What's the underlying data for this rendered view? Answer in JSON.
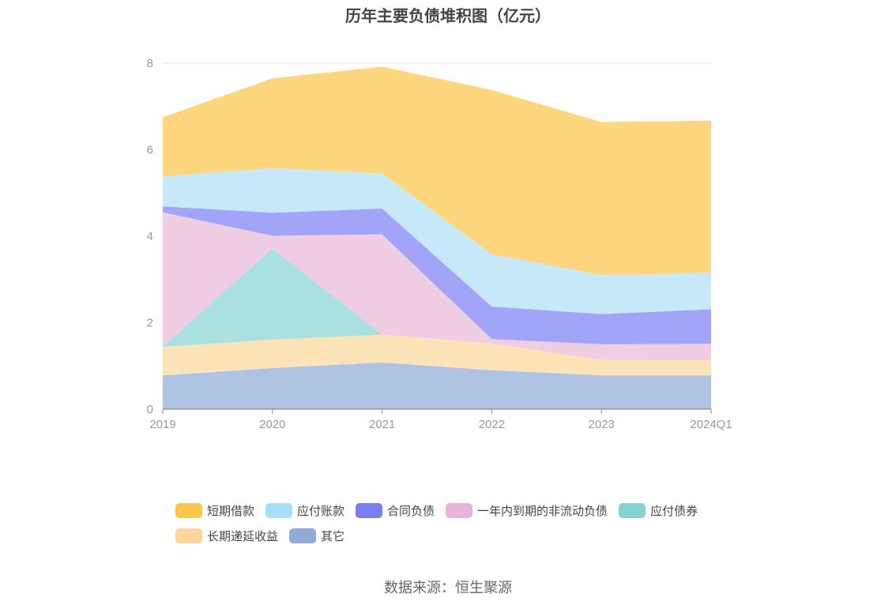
{
  "title": "历年主要负债堆积图（亿元）",
  "source": "数据来源：恒生聚源",
  "chart_data": {
    "type": "area",
    "stacked": true,
    "title": "历年主要负债堆积图（亿元）",
    "categories": [
      "2019",
      "2020",
      "2021",
      "2022",
      "2023",
      "2024Q1"
    ],
    "ylim": [
      0,
      8
    ],
    "yticks": [
      "0",
      "2",
      "4",
      "6",
      "8"
    ],
    "grid": true,
    "legend_position": "bottom",
    "series": [
      {
        "name": "其它",
        "color": "#aec3e2",
        "values": [
          0.78,
          0.95,
          1.08,
          0.9,
          0.78,
          0.78
        ]
      },
      {
        "name": "长期递延收益",
        "color": "#fde3b8",
        "values": [
          0.66,
          0.66,
          0.64,
          0.62,
          0.36,
          0.35
        ]
      },
      {
        "name": "应付债券",
        "color": "#a8e1e0",
        "values": [
          0.0,
          2.1,
          0.0,
          0.0,
          0.0,
          0.0
        ]
      },
      {
        "name": "一年内到期的非流动负债",
        "color": "#efcde3",
        "values": [
          3.11,
          0.3,
          2.32,
          0.1,
          0.36,
          0.38
        ]
      },
      {
        "name": "合同负债",
        "color": "#a2a4f7",
        "values": [
          0.14,
          0.53,
          0.6,
          0.75,
          0.7,
          0.8
        ]
      },
      {
        "name": "应付账款",
        "color": "#c6e8f9",
        "values": [
          0.69,
          1.03,
          0.81,
          1.21,
          0.9,
          0.84
        ]
      },
      {
        "name": "短期借款",
        "color": "#fdd67e",
        "values": [
          1.37,
          2.08,
          2.47,
          3.8,
          3.54,
          3.52
        ]
      }
    ]
  },
  "legend": {
    "row1": [
      {
        "name": "短期借款",
        "color": "#fcc64a"
      },
      {
        "name": "应付账款",
        "color": "#a9def8"
      },
      {
        "name": "合同负债",
        "color": "#7b7ef0"
      },
      {
        "name": "一年内到期的非流动负债",
        "color": "#e6b6d8"
      },
      {
        "name": "应付债券",
        "color": "#86d3d6"
      }
    ],
    "row2": [
      {
        "name": "长期递延收益",
        "color": "#fdd49a"
      },
      {
        "name": "其它",
        "color": "#8eabd9"
      }
    ]
  }
}
